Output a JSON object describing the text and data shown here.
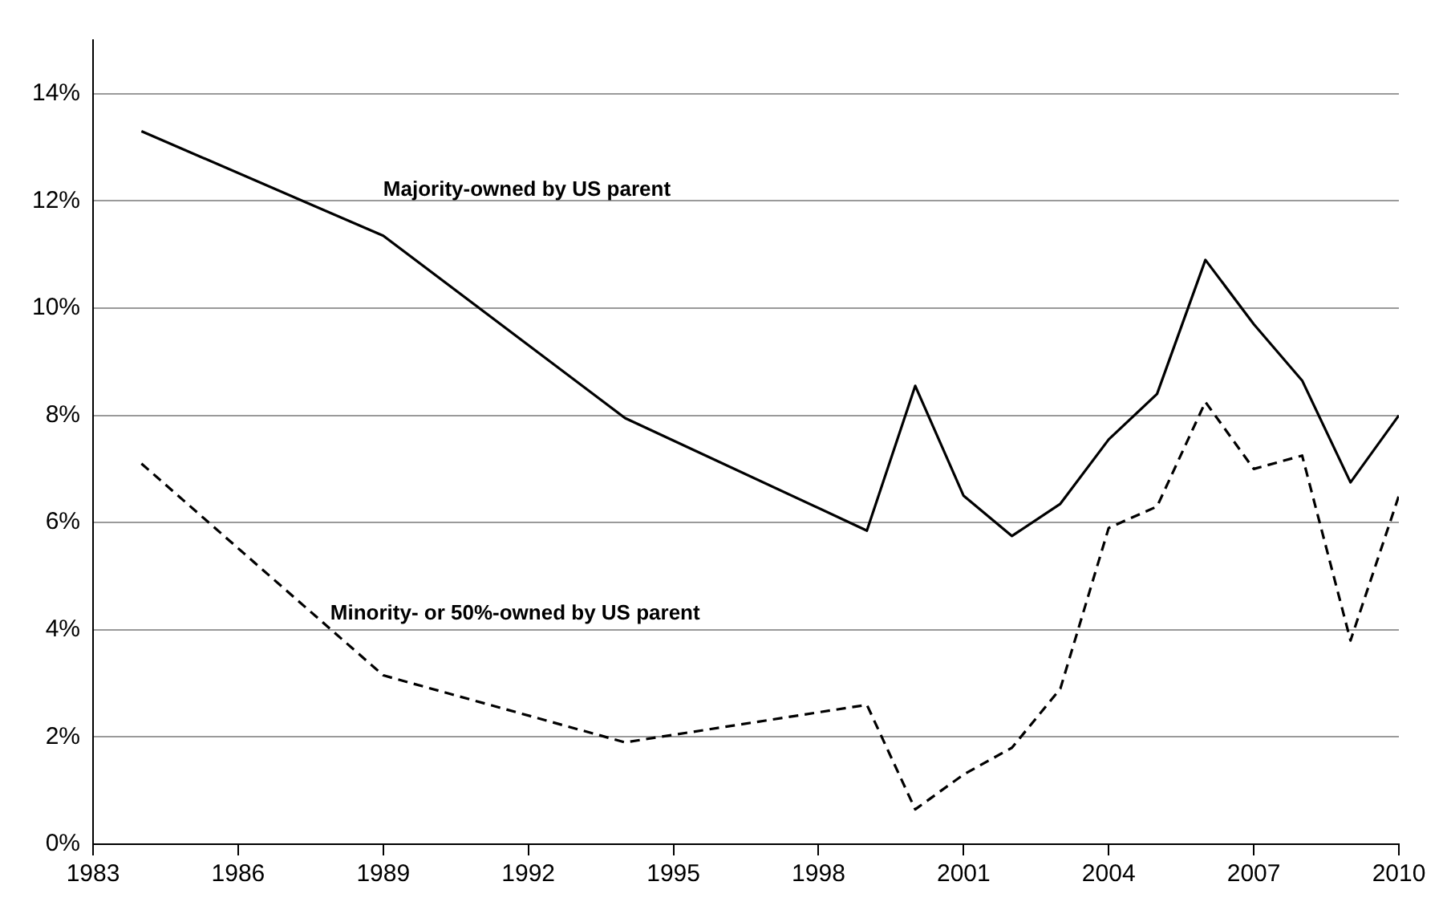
{
  "chart_data": {
    "type": "line",
    "x": [
      1984,
      1989,
      1994,
      1999,
      2000,
      2001,
      2002,
      2003,
      2004,
      2005,
      2006,
      2007,
      2008,
      2009,
      2010
    ],
    "series": [
      {
        "name": "Majority-owned by US parent",
        "color": "#000000",
        "line_style": "solid",
        "values": [
          13.3,
          11.35,
          7.95,
          5.85,
          8.55,
          6.5,
          5.75,
          6.35,
          7.55,
          8.4,
          10.9,
          9.7,
          8.65,
          6.75,
          8.0
        ]
      },
      {
        "name": "Minority- or 50%-owned by US parent",
        "color": "#000000",
        "line_style": "dashed",
        "values": [
          7.1,
          3.15,
          1.9,
          2.6,
          0.65,
          1.3,
          1.8,
          2.9,
          5.9,
          6.3,
          8.25,
          7.0,
          7.25,
          3.8,
          6.5
        ]
      }
    ],
    "xlim": [
      1983,
      2010
    ],
    "xticks": [
      1983,
      1986,
      1989,
      1992,
      1995,
      1998,
      2001,
      2004,
      2007,
      2010
    ],
    "ylim": [
      0,
      15
    ],
    "yticks": [
      {
        "value": 0,
        "label": "0%"
      },
      {
        "value": 2,
        "label": "2%"
      },
      {
        "value": 4,
        "label": "4%"
      },
      {
        "value": 6,
        "label": "6%"
      },
      {
        "value": 8,
        "label": "8%"
      },
      {
        "value": 10,
        "label": "10%"
      },
      {
        "value": 12,
        "label": "12%"
      },
      {
        "value": 14,
        "label": "14%"
      }
    ],
    "grid": "y",
    "legend": false,
    "marker": "none"
  }
}
